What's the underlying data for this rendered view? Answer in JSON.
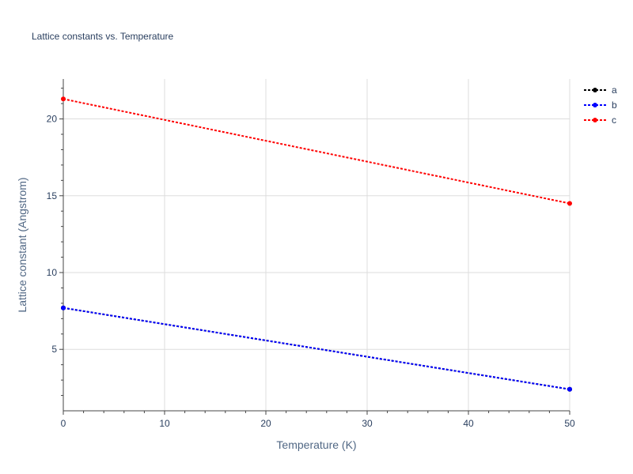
{
  "chart_data": {
    "type": "line",
    "title": "Lattice constants vs. Temperature",
    "xlabel": "Temperature (K)",
    "ylabel": "Lattice constant (Angstrom)",
    "xlim": [
      0,
      50
    ],
    "ylim": [
      1,
      22.6
    ],
    "x_ticks": [
      0,
      10,
      20,
      30,
      40,
      50
    ],
    "y_ticks": [
      5,
      10,
      15,
      20
    ],
    "grid": true,
    "legend_position": "top-right",
    "series": [
      {
        "name": "a",
        "color": "#000000",
        "x": [
          0,
          50
        ],
        "y": [
          7.7,
          2.4
        ]
      },
      {
        "name": "b",
        "color": "#0000ff",
        "x": [
          0,
          50
        ],
        "y": [
          7.7,
          2.4
        ]
      },
      {
        "name": "c",
        "color": "#ff0000",
        "x": [
          0,
          50
        ],
        "y": [
          21.3,
          14.5
        ]
      }
    ]
  }
}
